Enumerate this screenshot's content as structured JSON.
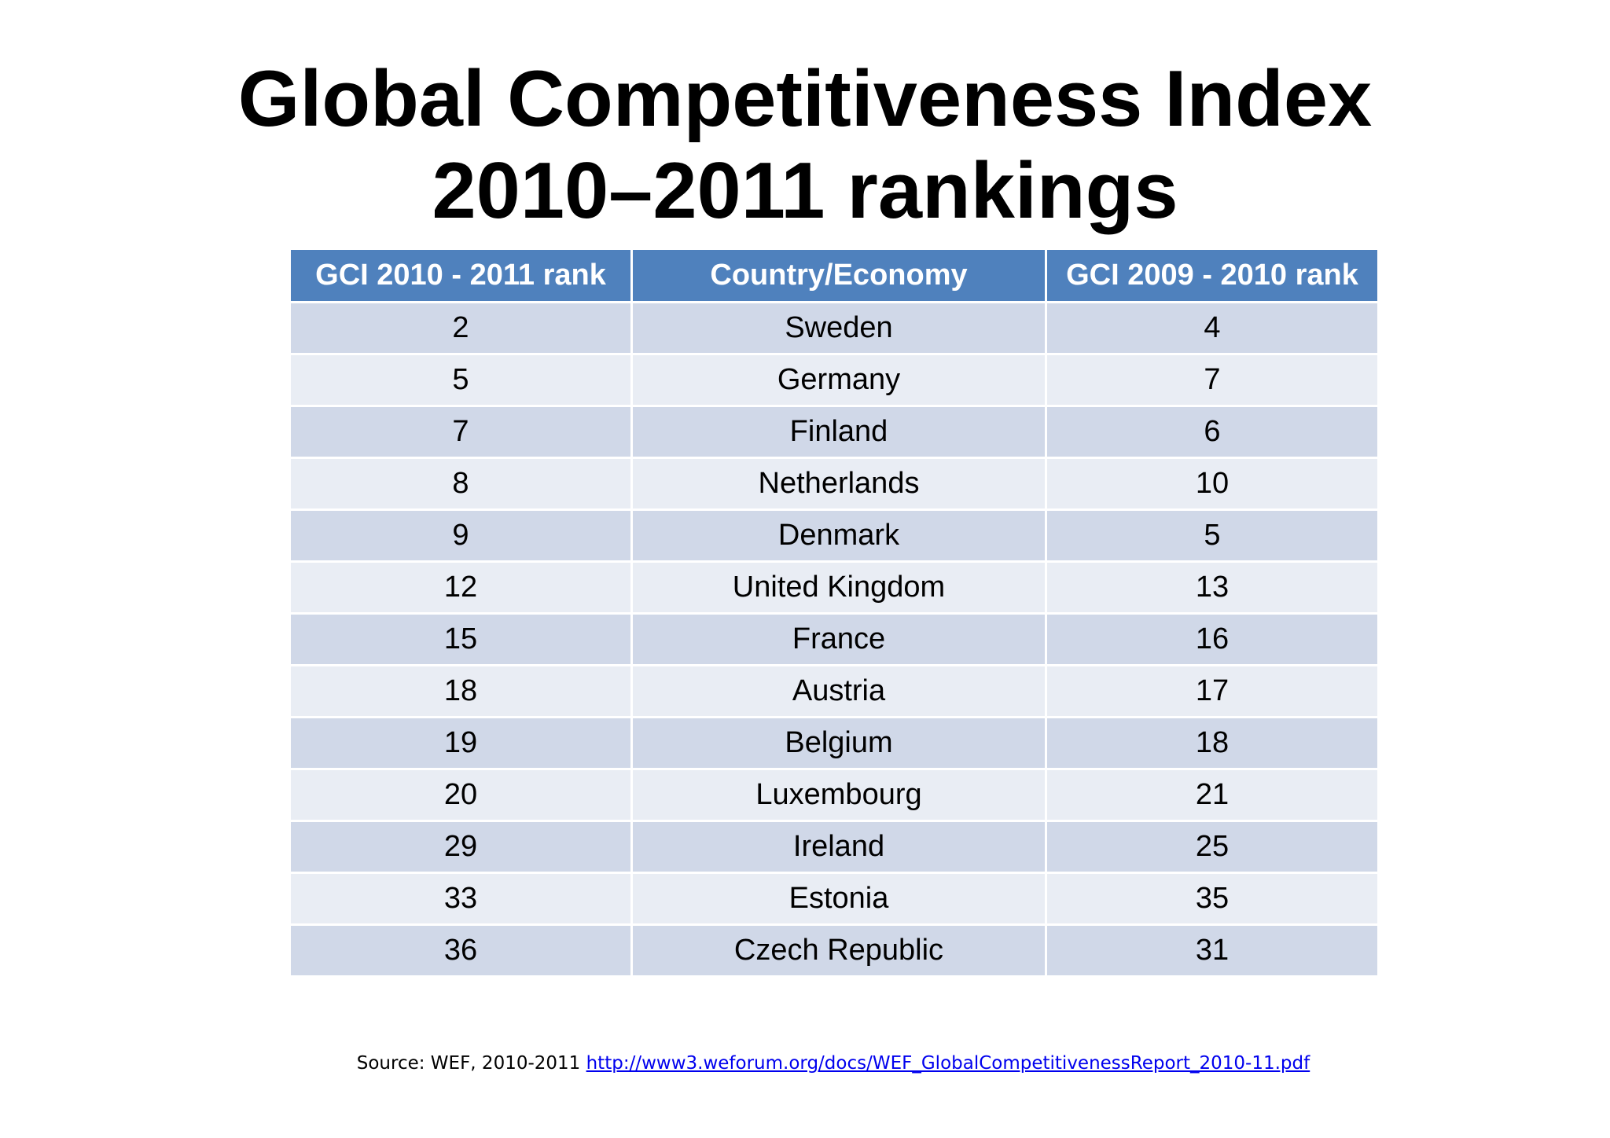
{
  "title": {
    "line1": "Global Competitiveness Index",
    "line2": "2010–2011 rankings"
  },
  "table": {
    "headers": [
      "GCI 2010 - 2011 rank",
      "Country/Economy",
      "GCI 2009 - 2010 rank"
    ],
    "rows": [
      {
        "rank_2010_2011": "2",
        "country": "Sweden",
        "rank_2009_2010": "4"
      },
      {
        "rank_2010_2011": "5",
        "country": "Germany",
        "rank_2009_2010": "7"
      },
      {
        "rank_2010_2011": "7",
        "country": "Finland",
        "rank_2009_2010": "6"
      },
      {
        "rank_2010_2011": "8",
        "country": "Netherlands",
        "rank_2009_2010": "10"
      },
      {
        "rank_2010_2011": "9",
        "country": "Denmark",
        "rank_2009_2010": "5"
      },
      {
        "rank_2010_2011": "12",
        "country": "United Kingdom",
        "rank_2009_2010": "13"
      },
      {
        "rank_2010_2011": "15",
        "country": "France",
        "rank_2009_2010": "16"
      },
      {
        "rank_2010_2011": "18",
        "country": "Austria",
        "rank_2009_2010": "17"
      },
      {
        "rank_2010_2011": "19",
        "country": "Belgium",
        "rank_2009_2010": "18"
      },
      {
        "rank_2010_2011": "20",
        "country": "Luxembourg",
        "rank_2009_2010": "21"
      },
      {
        "rank_2010_2011": "29",
        "country": "Ireland",
        "rank_2009_2010": "25"
      },
      {
        "rank_2010_2011": "33",
        "country": "Estonia",
        "rank_2009_2010": "35"
      },
      {
        "rank_2010_2011": "36",
        "country": "Czech Republic",
        "rank_2009_2010": "31"
      }
    ]
  },
  "source": {
    "prefix": "Source: WEF, 2010-2011 ",
    "link_text": "http://www3.weforum.org/docs/WEF_GlobalCompetitivenessReport_2010-11.pdf"
  },
  "colors": {
    "header_bg": "#4f81bd",
    "row_odd_bg": "#d0d8e8",
    "row_even_bg": "#e9edf4",
    "link": "#0000ee"
  }
}
